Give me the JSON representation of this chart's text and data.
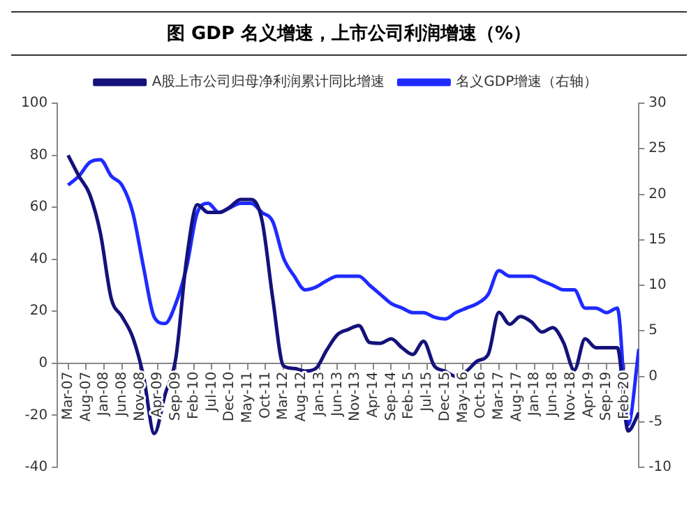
{
  "chart_data": {
    "type": "line",
    "title": "图 GDP 名义增速，上市公司利润增速（%）",
    "x": [
      "2007-03",
      "2007-06",
      "2007-09",
      "2007-12",
      "2008-03",
      "2008-06",
      "2008-09",
      "2008-12",
      "2009-03",
      "2009-06",
      "2009-09",
      "2009-12",
      "2010-03",
      "2010-06",
      "2010-09",
      "2010-12",
      "2011-03",
      "2011-06",
      "2011-09",
      "2011-12",
      "2012-03",
      "2012-06",
      "2012-09",
      "2012-12",
      "2013-03",
      "2013-06",
      "2013-09",
      "2013-12",
      "2014-03",
      "2014-06",
      "2014-09",
      "2014-12",
      "2015-03",
      "2015-06",
      "2015-09",
      "2015-12",
      "2016-03",
      "2016-06",
      "2016-09",
      "2016-12",
      "2017-03",
      "2017-06",
      "2017-09",
      "2017-12",
      "2018-03",
      "2018-06",
      "2018-09",
      "2018-12",
      "2019-03",
      "2019-06",
      "2019-09",
      "2019-12",
      "2020-03",
      "2020-06"
    ],
    "series": [
      {
        "name": "A股上市公司归母净利润累计同比增速",
        "color": "#14127a",
        "values": [
          80,
          72,
          65,
          50,
          25,
          18,
          10,
          -5,
          -27,
          -12,
          2,
          40,
          61,
          58,
          58,
          60,
          63,
          63,
          55,
          25,
          -1,
          -2,
          -3,
          -2,
          5,
          11,
          13,
          14.5,
          8,
          7.7,
          9.4,
          6,
          3.4,
          8.5,
          -1,
          -3,
          -5,
          -3,
          0.9,
          3.4,
          19.6,
          15,
          18,
          16,
          12,
          13.7,
          8,
          -2.6,
          9.4,
          6,
          6,
          6,
          -26,
          -19
        ]
      },
      {
        "name": "名义GDP增速（右轴）",
        "color": "#1f2bff",
        "axis": "y2",
        "values": [
          21,
          22,
          23.5,
          23.8,
          22,
          21,
          18,
          12,
          6.5,
          5.8,
          8,
          12,
          18,
          19,
          18,
          18.5,
          19,
          19,
          18,
          17,
          13,
          11,
          9.5,
          9.8,
          10.5,
          11,
          11,
          11,
          10,
          9,
          8,
          7.5,
          7,
          7,
          6.5,
          6.3,
          7,
          7.5,
          8,
          9,
          11.6,
          11,
          11,
          11,
          10.5,
          10,
          9.5,
          9.5,
          7.5,
          7.5,
          7,
          7.5,
          -5.3,
          3
        ]
      }
    ],
    "xlim": [
      "2006-12",
      "2020-06"
    ],
    "xticks": [
      {
        "value": "2007-03",
        "label": "Mar-07"
      },
      {
        "value": "2007-08",
        "label": "Aug-07"
      },
      {
        "value": "2008-01",
        "label": "Jan-08"
      },
      {
        "value": "2008-06",
        "label": "Jun-08"
      },
      {
        "value": "2008-11",
        "label": "Nov-08"
      },
      {
        "value": "2009-04",
        "label": "Apr-09"
      },
      {
        "value": "2009-09",
        "label": "Sep-09"
      },
      {
        "value": "2010-02",
        "label": "Feb-10"
      },
      {
        "value": "2010-07",
        "label": "Jul-10"
      },
      {
        "value": "2010-12",
        "label": "Dec-10"
      },
      {
        "value": "2011-05",
        "label": "May-11"
      },
      {
        "value": "2011-10",
        "label": "Oct-11"
      },
      {
        "value": "2012-03",
        "label": "Mar-12"
      },
      {
        "value": "2012-08",
        "label": "Aug-12"
      },
      {
        "value": "2013-01",
        "label": "Jan-13"
      },
      {
        "value": "2013-06",
        "label": "Jun-13"
      },
      {
        "value": "2013-11",
        "label": "Nov-13"
      },
      {
        "value": "2014-04",
        "label": "Apr-14"
      },
      {
        "value": "2014-09",
        "label": "Sep-14"
      },
      {
        "value": "2015-02",
        "label": "Feb-15"
      },
      {
        "value": "2015-07",
        "label": "Jul-15"
      },
      {
        "value": "2015-12",
        "label": "Dec-15"
      },
      {
        "value": "2016-05",
        "label": "May-16"
      },
      {
        "value": "2016-10",
        "label": "Oct-16"
      },
      {
        "value": "2017-03",
        "label": "Mar-17"
      },
      {
        "value": "2017-08",
        "label": "Aug-17"
      },
      {
        "value": "2018-01",
        "label": "Jan-18"
      },
      {
        "value": "2018-06",
        "label": "Jun-18"
      },
      {
        "value": "2018-11",
        "label": "Nov-18"
      },
      {
        "value": "2019-04",
        "label": "Apr-19"
      },
      {
        "value": "2019-09",
        "label": "Sep-19"
      },
      {
        "value": "2020-02",
        "label": "Feb-20"
      }
    ],
    "ylim": [
      -40,
      100
    ],
    "yticks": [
      -40,
      -20,
      0,
      20,
      40,
      60,
      80,
      100
    ],
    "y2lim": [
      -10,
      30
    ],
    "y2ticks": [
      -10,
      -5,
      0,
      5,
      10,
      15,
      20,
      25,
      30
    ],
    "legend": "top",
    "grid": false,
    "marker": "none",
    "line_style": "solid"
  }
}
